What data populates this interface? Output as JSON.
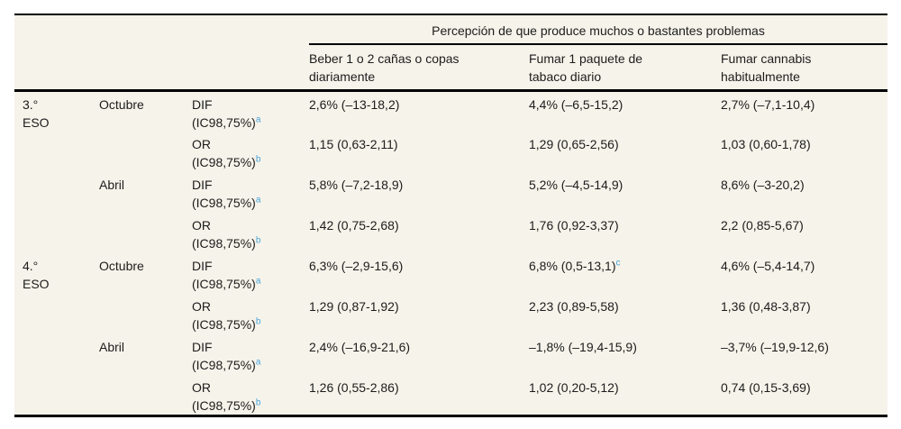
{
  "colors": {
    "table_background": "#f6f3ea",
    "rule": "#000000",
    "text": "#1c1c1c",
    "footnote_marker": "#4aa4da"
  },
  "table": {
    "spanner": "Percepción de que produce muchos o bastantes problemas",
    "columns": [
      {
        "line1": "Beber 1 o 2 cañas o copas",
        "line2": "diariamente"
      },
      {
        "line1": "Fumar 1 paquete de",
        "line2": "tabaco diario"
      },
      {
        "line1": "Fumar cannabis",
        "line2": "habitualmente"
      }
    ],
    "rows": [
      {
        "grade1": "3.°",
        "grade2": "ESO",
        "month": "Octubre",
        "m1": "DIF",
        "m2": "(IC98,75%)",
        "msup": "a",
        "v1": "2,6% (–13-18,2)",
        "v2": "4,4% (–6,5-15,2)",
        "v3": "2,7% (–7,1-10,4)"
      },
      {
        "m1": "OR",
        "m2": "(IC98,75%)",
        "msup": "b",
        "v1": "1,15 (0,63-2,11)",
        "v2": "1,29 (0,65-2,56)",
        "v3": "1,03 (0,60-1,78)"
      },
      {
        "month": "Abril",
        "m1": "DIF",
        "m2": "(IC98,75%)",
        "msup": "a",
        "v1": "5,8% (–7,2-18,9)",
        "v2": "5,2% (–4,5-14,9)",
        "v3": "8,6% (–3-20,2)"
      },
      {
        "m1": "OR",
        "m2": "(IC98,75%)",
        "msup": "b",
        "v1": "1,42 (0,75-2,68)",
        "v2": "1,76 (0,92-3,37)",
        "v3": "2,2 (0,85-5,67)"
      },
      {
        "grade1": "4.°",
        "grade2": "ESO",
        "month": "Octubre",
        "m1": "DIF",
        "m2": "(IC98,75%)",
        "msup": "a",
        "v1": "6,3% (–2,9-15,6)",
        "v2": "6,8% (0,5-13,1)",
        "v2sup": "c",
        "v3": "4,6% (–5,4-14,7)"
      },
      {
        "m1": "OR",
        "m2": "(IC98,75%)",
        "msup": "b",
        "v1": "1,29 (0,87-1,92)",
        "v2": "2,23 (0,89-5,58)",
        "v3": "1,36 (0,48-3,87)"
      },
      {
        "month": "Abril",
        "m1": "DIF",
        "m2": "(IC98,75%)",
        "msup": "a",
        "v1": "2,4% (–16,9-21,6)",
        "v2": "–1,8% (–19,4-15,9)",
        "v3": "–3,7% (–19,9-12,6)"
      },
      {
        "m1": "OR",
        "m2": "(IC98,75%)",
        "msup": "b",
        "v1": "1,26 (0,55-2,86)",
        "v2": "1,02 (0,20-5,12)",
        "v3": "0,74 (0,15-3,69)"
      }
    ]
  }
}
